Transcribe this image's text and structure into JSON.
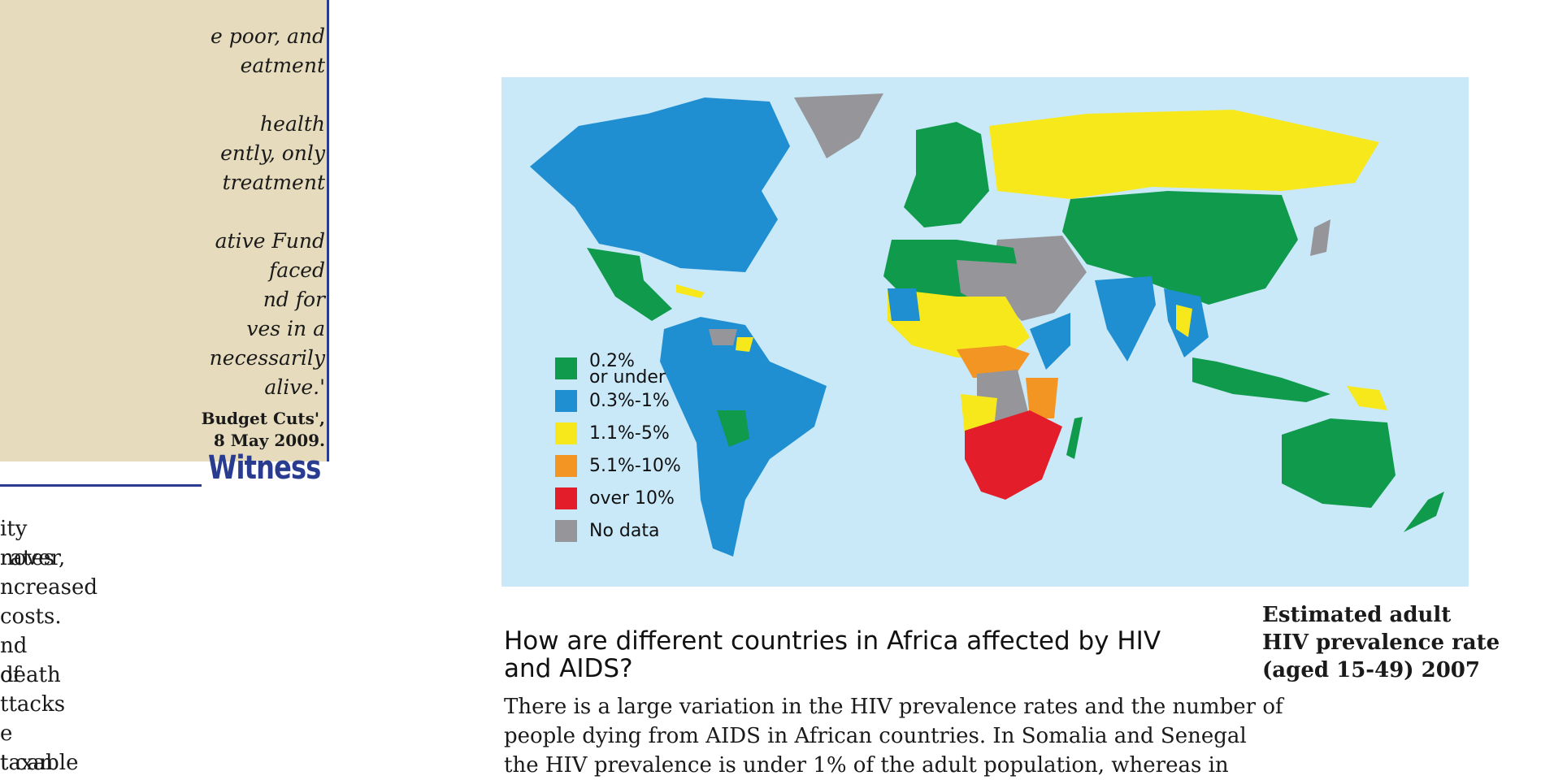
{
  "quote": {
    "lines": [
      "e poor, and",
      "eatment",
      "",
      "health",
      "ently, only",
      "treatment",
      "",
      "ative Fund",
      "faced",
      "nd for",
      "ves in a",
      "necessarily",
      "alive.'"
    ],
    "source_lines": [
      "Budget Cuts',",
      "8 May 2009."
    ],
    "witness_label": "Witness"
  },
  "left_column_text": [
    "ity rates",
    "nover,",
    "ncreased",
    "costs.",
    "nd death",
    "of",
    "ttacks",
    "e taxable",
    "t can"
  ],
  "map": {
    "colors": {
      "ocean": "#c9e9f8",
      "green": "#0f9a4c",
      "blue": "#1f8fd1",
      "yellow": "#f7e81c",
      "orange": "#f39523",
      "red": "#e31e2a",
      "grey": "#96969a"
    },
    "legend": [
      {
        "label": "0.2%",
        "sublabel": "or under",
        "color": "#0f9a4c"
      },
      {
        "label": "0.3%-1%",
        "sublabel": "",
        "color": "#1f8fd1"
      },
      {
        "label": "1.1%-5%",
        "sublabel": "",
        "color": "#f7e81c"
      },
      {
        "label": "5.1%-10%",
        "sublabel": "",
        "color": "#f39523"
      },
      {
        "label": "over 10%",
        "sublabel": "",
        "color": "#e31e2a"
      },
      {
        "label": "No data",
        "sublabel": "",
        "color": "#96969a"
      }
    ]
  },
  "caption": {
    "lines": [
      "Estimated adult",
      "HIV prevalence rate",
      "(aged 15-49) 2007"
    ]
  },
  "section": {
    "heading_lines": [
      "How are different countries in Africa affected by HIV",
      "and AIDS?"
    ],
    "paragraph_lines": [
      "There is a large variation in the HIV prevalence rates and the number of",
      "people dying from AIDS in African countries. In Somalia and Senegal",
      "the HIV prevalence is under 1% of the adult population, whereas in"
    ]
  }
}
